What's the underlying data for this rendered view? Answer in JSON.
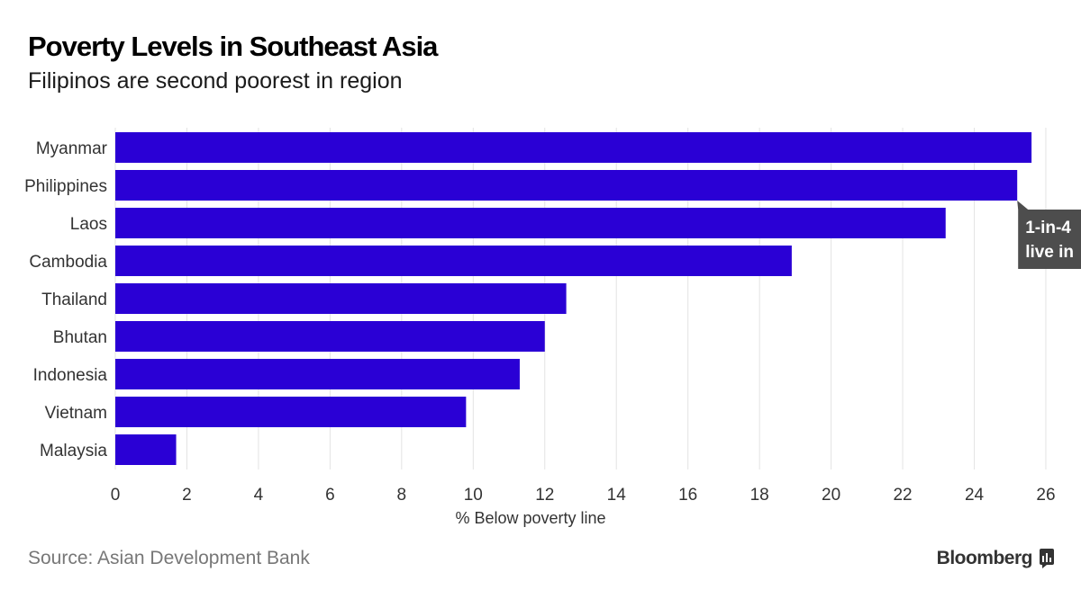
{
  "title": "Poverty Levels in Southeast Asia",
  "subtitle": "Filipinos are second poorest in region",
  "source": "Source: Asian Development Bank",
  "brand": "Bloomberg",
  "colors": {
    "bar": "#2a00d5",
    "grid": "#e3e3e3",
    "annotation_bg": "#4d4d4d",
    "annotation_text": "#ffffff"
  },
  "chart_data": {
    "type": "bar",
    "orientation": "horizontal",
    "categories": [
      "Myanmar",
      "Philippines",
      "Laos",
      "Cambodia",
      "Thailand",
      "Bhutan",
      "Indonesia",
      "Vietnam",
      "Malaysia"
    ],
    "values": [
      25.6,
      25.2,
      23.2,
      18.9,
      12.6,
      12.0,
      11.3,
      9.8,
      1.7
    ],
    "xlabel": "% Below poverty line",
    "xlim": [
      0,
      26
    ],
    "xticks": [
      0,
      2,
      4,
      6,
      8,
      10,
      12,
      14,
      16,
      18,
      20,
      22,
      24,
      26
    ],
    "grid": "vertical",
    "annotations": [
      {
        "target": "Philippines",
        "lines": [
          "1-in-4",
          "live in"
        ]
      }
    ]
  }
}
